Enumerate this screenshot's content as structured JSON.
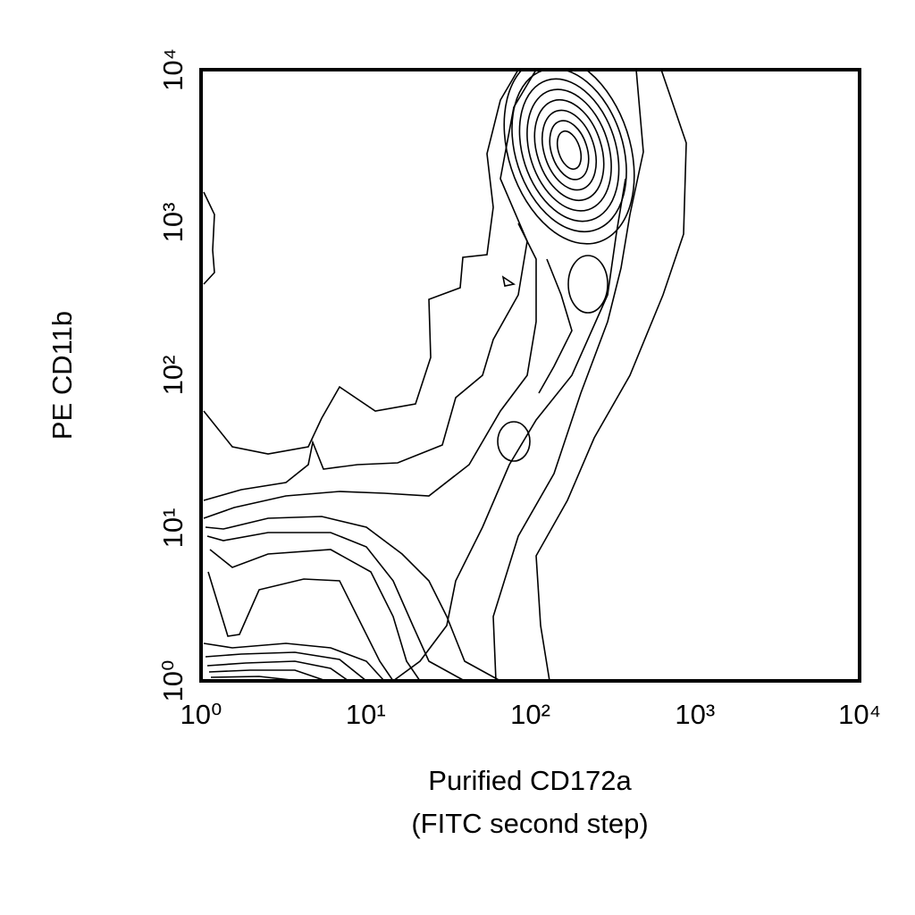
{
  "chart_data": {
    "type": "contour",
    "xlabel": [
      "Purified CD172a",
      "(FITC second step)"
    ],
    "ylabel": "PE CD11b",
    "xscale": "log",
    "yscale": "log",
    "xlim": [
      1,
      10000
    ],
    "ylim": [
      1,
      10000
    ],
    "xticks": [
      {
        "value": 1,
        "label": "10⁰"
      },
      {
        "value": 10,
        "label": "10¹"
      },
      {
        "value": 100,
        "label": "10²"
      },
      {
        "value": 1000,
        "label": "10³"
      },
      {
        "value": 10000,
        "label": "10⁴"
      }
    ],
    "yticks": [
      {
        "value": 1,
        "label": "10⁰"
      },
      {
        "value": 10,
        "label": "10¹"
      },
      {
        "value": 100,
        "label": "10²"
      },
      {
        "value": 1000,
        "label": "10³"
      },
      {
        "value": 10000,
        "label": "10⁴"
      }
    ],
    "color": "#000000"
  }
}
